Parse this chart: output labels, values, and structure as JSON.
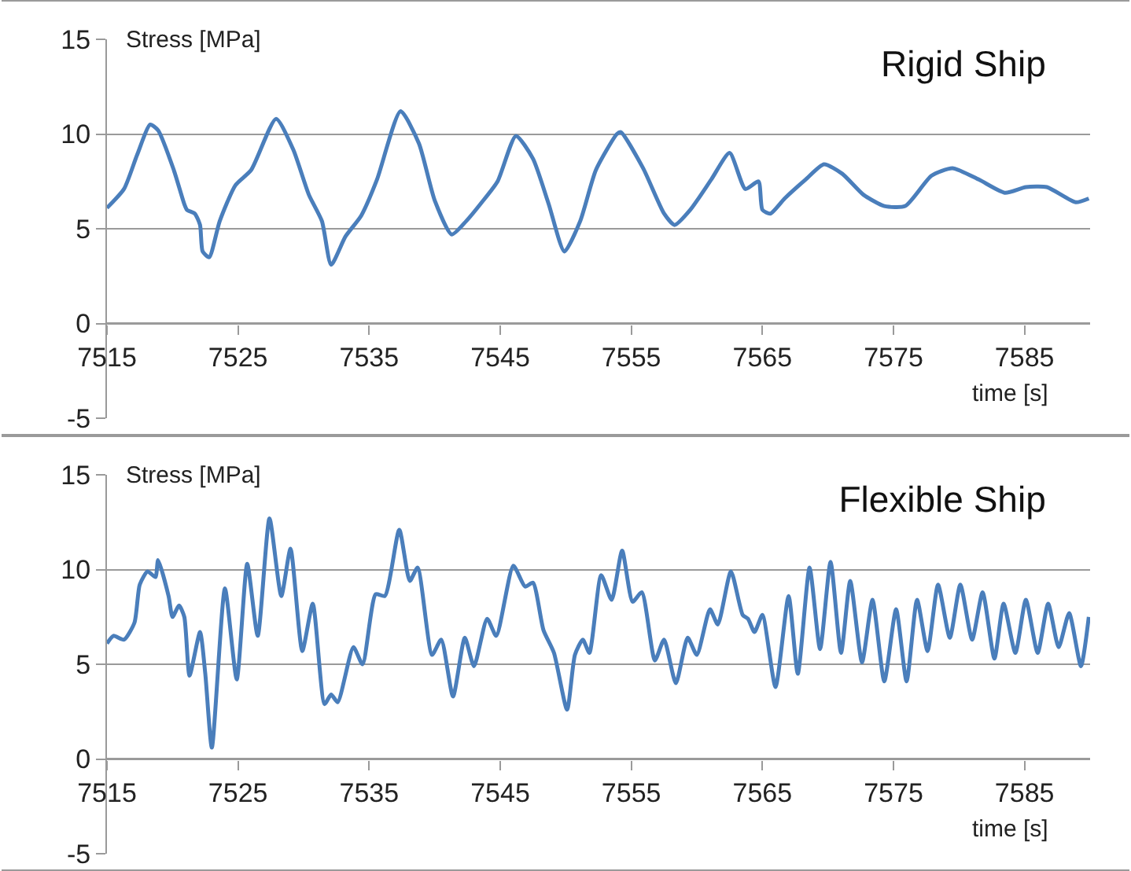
{
  "chart_data": [
    {
      "type": "line",
      "title": "Rigid Ship",
      "xlabel": "time [s]",
      "ylabel": "Stress [MPa]",
      "x": [
        7515.0,
        7516.3,
        7517.3,
        7518.3,
        7518.9,
        7520.1,
        7520.9,
        7521.1,
        7521.7,
        7522.1,
        7522.3,
        7522.8,
        7523.6,
        7524.8,
        7526.0,
        7527.9,
        7529.2,
        7530.4,
        7531.4,
        7532.1,
        7533.2,
        7534.4,
        7535.6,
        7537.4,
        7538.8,
        7540.0,
        7541.3,
        7542.4,
        7543.6,
        7544.8,
        7546.2,
        7547.5,
        7548.7,
        7549.9,
        7551.1,
        7552.3,
        7553.9,
        7554.2,
        7555.9,
        7557.5,
        7558.3,
        7559.5,
        7561.1,
        7562.5,
        7563.7,
        7564.7,
        7565.0,
        7565.6,
        7566.7,
        7568.3,
        7569.7,
        7571.1,
        7572.7,
        7574.3,
        7575.9,
        7577.9,
        7579.5,
        7581.5,
        7583.5,
        7585.1,
        7586.7,
        7588.9,
        7589.9
      ],
      "series": [
        {
          "color": "#4a7ebb",
          "values": [
            6.1,
            7.1,
            8.9,
            10.5,
            10.2,
            8.1,
            6.3,
            6.0,
            5.8,
            5.2,
            3.8,
            3.5,
            5.4,
            7.3,
            8.1,
            10.8,
            9.2,
            6.8,
            5.4,
            3.1,
            4.6,
            5.7,
            7.6,
            11.2,
            9.5,
            6.5,
            4.7,
            5.4,
            6.4,
            7.5,
            9.9,
            8.7,
            6.3,
            3.8,
            5.4,
            8.1,
            10.0,
            10.1,
            8.2,
            5.8,
            5.2,
            6.0,
            7.6,
            9.0,
            7.1,
            7.5,
            6.0,
            5.8,
            6.6,
            7.6,
            8.4,
            7.9,
            6.8,
            6.2,
            6.2,
            7.8,
            8.2,
            7.6,
            6.9,
            7.2,
            7.2,
            6.4,
            6.6
          ]
        }
      ],
      "xlim": [
        7515,
        7590
      ],
      "ylim": [
        -5,
        15
      ],
      "xticks": [
        7515,
        7525,
        7535,
        7545,
        7555,
        7565,
        7575,
        7585
      ],
      "yticks": [
        -5,
        0,
        5,
        10,
        15
      ],
      "grid": "y"
    },
    {
      "type": "line",
      "title": "Flexible Ship",
      "xlabel": "time [s]",
      "ylabel": "Stress [MPa]",
      "x": [
        7515.0,
        7515.5,
        7516.3,
        7517.1,
        7517.5,
        7518.1,
        7518.7,
        7518.9,
        7519.7,
        7520.0,
        7520.5,
        7520.9,
        7521.3,
        7522.1,
        7522.5,
        7523.0,
        7524.0,
        7524.9,
        7525.7,
        7526.5,
        7527.4,
        7528.3,
        7529.0,
        7529.9,
        7530.7,
        7531.6,
        7532.1,
        7532.6,
        7533.8,
        7534.5,
        7535.5,
        7536.2,
        7537.3,
        7538.1,
        7538.7,
        7539.8,
        7540.5,
        7541.4,
        7542.3,
        7543.0,
        7544.0,
        7544.7,
        7546.0,
        7546.9,
        7547.5,
        7548.3,
        7549.1,
        7550.1,
        7550.7,
        7551.3,
        7551.8,
        7552.7,
        7553.5,
        7554.3,
        7555.1,
        7555.8,
        7556.8,
        7557.5,
        7558.4,
        7559.3,
        7560.0,
        7561.0,
        7561.6,
        7562.6,
        7563.5,
        7563.9,
        7564.4,
        7565.0,
        7566.0,
        7567.0,
        7567.7,
        7568.6,
        7569.4,
        7570.2,
        7571.0,
        7571.7,
        7572.6,
        7573.4,
        7574.3,
        7575.2,
        7576.0,
        7576.8,
        7577.6,
        7578.4,
        7579.3,
        7580.1,
        7581.0,
        7581.8,
        7582.7,
        7583.4,
        7584.3,
        7585.1,
        7586.0,
        7586.8,
        7587.6,
        7588.4,
        7589.3,
        7589.9
      ],
      "series": [
        {
          "color": "#4a7ebb",
          "values": [
            6.1,
            6.5,
            6.3,
            7.2,
            9.2,
            9.9,
            9.6,
            10.5,
            8.6,
            7.5,
            8.1,
            7.5,
            4.4,
            6.7,
            4.5,
            0.6,
            9.0,
            4.2,
            10.3,
            6.5,
            12.7,
            8.6,
            11.1,
            5.7,
            8.2,
            2.9,
            3.4,
            3.0,
            5.9,
            5.0,
            8.7,
            8.6,
            12.1,
            9.4,
            10.1,
            5.5,
            6.3,
            3.3,
            6.4,
            4.9,
            7.4,
            6.5,
            10.2,
            9.1,
            9.3,
            6.8,
            5.6,
            2.6,
            5.5,
            6.3,
            5.6,
            9.7,
            8.4,
            11.0,
            8.3,
            8.8,
            5.2,
            6.3,
            4.0,
            6.4,
            5.5,
            7.9,
            7.1,
            9.9,
            7.6,
            7.4,
            6.7,
            7.6,
            3.8,
            8.6,
            4.5,
            10.1,
            5.8,
            10.4,
            5.6,
            9.4,
            5.1,
            8.4,
            4.1,
            7.9,
            4.1,
            8.4,
            5.7,
            9.2,
            6.4,
            9.2,
            6.3,
            8.8,
            5.3,
            8.2,
            5.6,
            8.4,
            5.6,
            8.2,
            5.9,
            7.7,
            4.9,
            7.5
          ]
        }
      ],
      "xlim": [
        7515,
        7590
      ],
      "ylim": [
        -5,
        15
      ],
      "xticks": [
        7515,
        7525,
        7535,
        7545,
        7555,
        7565,
        7575,
        7585
      ],
      "yticks": [
        -5,
        0,
        5,
        10,
        15
      ],
      "grid": "y"
    }
  ]
}
